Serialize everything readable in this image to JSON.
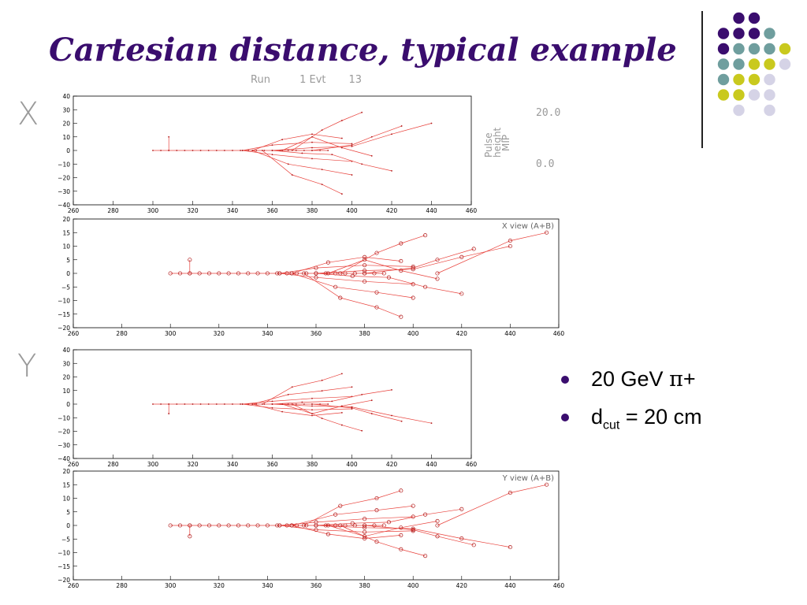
{
  "slide": {
    "title": "Cartesian distance, typical example",
    "run_label": "Run         1 Evt       13",
    "x_letter": "X",
    "y_letter": "Y",
    "pulse_height": {
      "lines": [
        "Pulse",
        "height",
        "MIP"
      ],
      "max": "20.0",
      "min": "0.0"
    }
  },
  "bullets": [
    {
      "prefix": "20 GeV ",
      "symbol": "π",
      "suffix": "+"
    },
    {
      "prefix": " d",
      "sub": "cut",
      "suffix": " = 20 cm"
    }
  ],
  "plots": {
    "x_hits": {
      "yticks": [
        "40",
        "30",
        "20",
        "10",
        "0",
        "−10",
        "−20",
        "−30",
        "−40"
      ],
      "xticks": [
        "260",
        "280",
        "300",
        "320",
        "340",
        "360",
        "380",
        "400",
        "420",
        "440",
        "460"
      ]
    },
    "x_view": {
      "label": "X view (A+B)",
      "yticks": [
        "20",
        "15",
        "10",
        "5",
        "0",
        "−5",
        "−10",
        "−15",
        "−20"
      ],
      "xticks": [
        "260",
        "280",
        "300",
        "320",
        "340",
        "360",
        "380",
        "400",
        "420",
        "440",
        "460"
      ]
    },
    "y_hits": {
      "yticks": [
        "40",
        "30",
        "20",
        "10",
        "0",
        "−10",
        "−20",
        "−30",
        "−40"
      ],
      "xticks": [
        "260",
        "280",
        "300",
        "320",
        "340",
        "360",
        "380",
        "400",
        "420",
        "440",
        "460"
      ]
    },
    "y_view": {
      "label": "Y view (A+B)",
      "yticks": [
        "20",
        "15",
        "10",
        "5",
        "0",
        "−5",
        "−10",
        "−15",
        "−20"
      ],
      "xticks": [
        "260",
        "280",
        "300",
        "320",
        "340",
        "360",
        "380",
        "400",
        "420",
        "440",
        "460"
      ]
    }
  },
  "colors": {
    "title": "#3a0d6e",
    "track": "#e8413b",
    "hit": "#b01818",
    "deco_purple": "#3a0d6e",
    "deco_teal": "#6f9e9e",
    "deco_yellow": "#c9c91e",
    "deco_lavender": "#d5d3e6"
  }
}
